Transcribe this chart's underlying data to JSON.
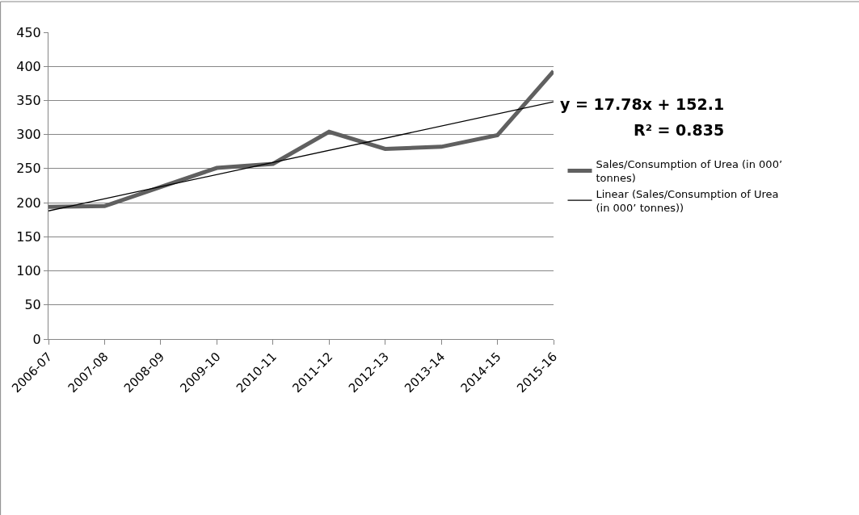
{
  "chart_data": {
    "type": "line",
    "categories": [
      "2006-07",
      "2007-08",
      "2008-09",
      "2009-10",
      "2010-11",
      "2011-12",
      "2012-13",
      "2013-14",
      "2014-15",
      "2015-16"
    ],
    "series": [
      {
        "name": "Sales/Consumption of Urea (in 000’ tonnes)",
        "color": "#606060",
        "values": [
          194,
          195,
          223,
          251,
          257,
          304,
          279,
          282,
          299,
          393
        ]
      },
      {
        "name": "Linear (Sales/Consumption of Urea (in 000’ tonnes))",
        "color": "#000000",
        "values": [
          188,
          null,
          null,
          null,
          null,
          null,
          null,
          null,
          null,
          348
        ]
      }
    ],
    "ylim": [
      0,
      450
    ],
    "yticks": [
      0,
      50,
      100,
      150,
      200,
      250,
      300,
      350,
      400,
      450
    ],
    "grid": "y",
    "legend": "right",
    "marker": "none",
    "annotations": [
      "y = 17.78x + 152.1",
      "R² = 0.835"
    ]
  }
}
